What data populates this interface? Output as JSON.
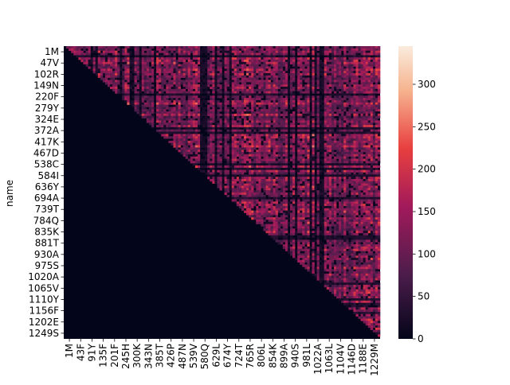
{
  "chart_data": {
    "type": "heatmap",
    "title": "",
    "xlabel": "",
    "ylabel": "name",
    "row_tick_labels": [
      "1M",
      "47V",
      "102R",
      "149N",
      "220F",
      "279Y",
      "324E",
      "372A",
      "417K",
      "467D",
      "538C",
      "584I",
      "636Y",
      "694A",
      "739T",
      "784Q",
      "835K",
      "881T",
      "930A",
      "975S",
      "1020A",
      "1065V",
      "1110Y",
      "1156F",
      "1202E",
      "1249S"
    ],
    "col_tick_labels": [
      "1M",
      "43F",
      "91Y",
      "135F",
      "201F",
      "245H",
      "300K",
      "343N",
      "385T",
      "426P",
      "487N",
      "539V",
      "580Q",
      "629L",
      "674Y",
      "724T",
      "765R",
      "806L",
      "854K",
      "899A",
      "940S",
      "981L",
      "1022A",
      "1063L",
      "1104V",
      "1146D",
      "1188E",
      "1229M"
    ],
    "structure": "upper-triangular",
    "lower_triangle_value": 0,
    "colorbar": {
      "vmin": 0,
      "vmax": 345,
      "ticks": [
        0,
        50,
        100,
        150,
        200,
        250,
        300
      ],
      "colormap": "rocket"
    },
    "grid": false,
    "legend": "colorbar-right"
  },
  "colors": {
    "low": "#03051a",
    "mid_low": "#4c1d4b",
    "mid": "#a11a5b",
    "mid_high": "#e83f3f",
    "high": "#f6b48f",
    "max": "#faebdd"
  }
}
